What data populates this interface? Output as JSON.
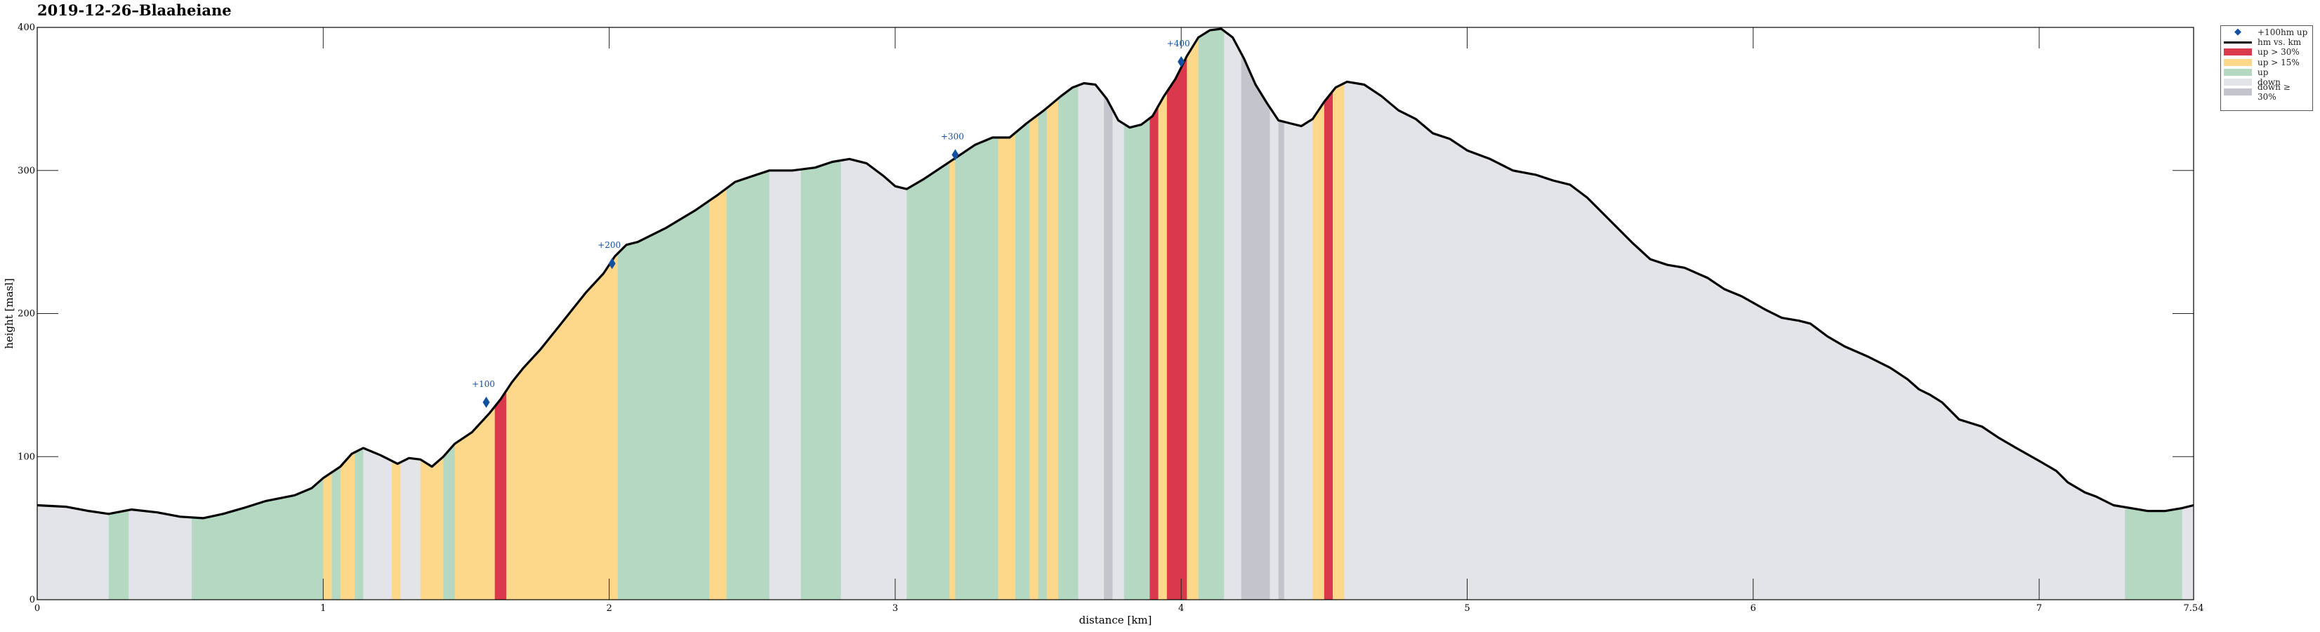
{
  "chart_data": {
    "type": "area",
    "title": "2019-12-26–Blaaheiane",
    "xlabel": "distance [km]",
    "ylabel": "height [masl]",
    "xlim": [
      0,
      7.54
    ],
    "ylim": [
      0,
      400
    ],
    "x_ticks": [
      0,
      1,
      2,
      3,
      4,
      5,
      6,
      7,
      7.54
    ],
    "x_tick_labels": [
      "0",
      "1",
      "2",
      "3",
      "4",
      "5",
      "6",
      "7",
      "7.54"
    ],
    "y_ticks": [
      0,
      100,
      200,
      300,
      400
    ],
    "y_tick_labels": [
      "0",
      "100",
      "200",
      "300",
      "400"
    ],
    "grid": true,
    "legend_position": "outside-right-top",
    "colors": {
      "up_gt_30": "#d9394a",
      "up_gt_15": "#fdd88a",
      "up": "#b5d8c3",
      "down": "#e3e4e8",
      "down_ge_30": "#c3c4cc",
      "line": "#000000",
      "marker": "#1450a0"
    },
    "legend": [
      {
        "key": "marker",
        "label": "+100hm up"
      },
      {
        "key": "line",
        "label": "hm vs. km"
      },
      {
        "key": "up_gt_30",
        "label": "up > 30%"
      },
      {
        "key": "up_gt_15",
        "label": "up > 15%"
      },
      {
        "key": "up",
        "label": "up"
      },
      {
        "key": "down",
        "label": "down"
      },
      {
        "key": "down_ge_30",
        "label": "down ≥ 30%"
      }
    ],
    "profile": [
      [
        0,
        66
      ],
      [
        0.1,
        65
      ],
      [
        0.18,
        62
      ],
      [
        0.25,
        60
      ],
      [
        0.33,
        63
      ],
      [
        0.42,
        61
      ],
      [
        0.5,
        58
      ],
      [
        0.58,
        57
      ],
      [
        0.65,
        60
      ],
      [
        0.72,
        64
      ],
      [
        0.8,
        69
      ],
      [
        0.9,
        73
      ],
      [
        0.96,
        78
      ],
      [
        1.0,
        85
      ],
      [
        1.06,
        93
      ],
      [
        1.1,
        102
      ],
      [
        1.14,
        106
      ],
      [
        1.2,
        101
      ],
      [
        1.26,
        95
      ],
      [
        1.3,
        99
      ],
      [
        1.34,
        98
      ],
      [
        1.38,
        93
      ],
      [
        1.42,
        100
      ],
      [
        1.46,
        109
      ],
      [
        1.52,
        117
      ],
      [
        1.58,
        130
      ],
      [
        1.62,
        140
      ],
      [
        1.66,
        152
      ],
      [
        1.7,
        162
      ],
      [
        1.76,
        175
      ],
      [
        1.82,
        190
      ],
      [
        1.88,
        205
      ],
      [
        1.92,
        215
      ],
      [
        1.98,
        228
      ],
      [
        2.02,
        240
      ],
      [
        2.06,
        248
      ],
      [
        2.1,
        250
      ],
      [
        2.2,
        260
      ],
      [
        2.3,
        272
      ],
      [
        2.38,
        283
      ],
      [
        2.44,
        292
      ],
      [
        2.5,
        296
      ],
      [
        2.56,
        300
      ],
      [
        2.64,
        300
      ],
      [
        2.72,
        302
      ],
      [
        2.78,
        306
      ],
      [
        2.84,
        308
      ],
      [
        2.9,
        305
      ],
      [
        2.96,
        296
      ],
      [
        3.0,
        289
      ],
      [
        3.04,
        287
      ],
      [
        3.1,
        294
      ],
      [
        3.16,
        302
      ],
      [
        3.22,
        310
      ],
      [
        3.28,
        318
      ],
      [
        3.34,
        323
      ],
      [
        3.4,
        323
      ],
      [
        3.46,
        333
      ],
      [
        3.52,
        342
      ],
      [
        3.58,
        352
      ],
      [
        3.62,
        358
      ],
      [
        3.66,
        361
      ],
      [
        3.7,
        360
      ],
      [
        3.74,
        350
      ],
      [
        3.78,
        335
      ],
      [
        3.82,
        330
      ],
      [
        3.86,
        332
      ],
      [
        3.9,
        338
      ],
      [
        3.94,
        352
      ],
      [
        3.98,
        364
      ],
      [
        4.02,
        380
      ],
      [
        4.06,
        393
      ],
      [
        4.1,
        398
      ],
      [
        4.14,
        399
      ],
      [
        4.18,
        393
      ],
      [
        4.22,
        378
      ],
      [
        4.26,
        360
      ],
      [
        4.3,
        347
      ],
      [
        4.34,
        335
      ],
      [
        4.38,
        333
      ],
      [
        4.42,
        331
      ],
      [
        4.46,
        336
      ],
      [
        4.5,
        348
      ],
      [
        4.54,
        358
      ],
      [
        4.58,
        362
      ],
      [
        4.64,
        360
      ],
      [
        4.7,
        352
      ],
      [
        4.76,
        342
      ],
      [
        4.82,
        336
      ],
      [
        4.88,
        326
      ],
      [
        4.94,
        322
      ],
      [
        5.0,
        314
      ],
      [
        5.08,
        308
      ],
      [
        5.16,
        300
      ],
      [
        5.24,
        297
      ],
      [
        5.3,
        293
      ],
      [
        5.36,
        290
      ],
      [
        5.42,
        281
      ],
      [
        5.5,
        265
      ],
      [
        5.58,
        249
      ],
      [
        5.64,
        238
      ],
      [
        5.7,
        234
      ],
      [
        5.76,
        232
      ],
      [
        5.84,
        225
      ],
      [
        5.9,
        217
      ],
      [
        5.96,
        212
      ],
      [
        6.04,
        203
      ],
      [
        6.1,
        197
      ],
      [
        6.16,
        195
      ],
      [
        6.2,
        193
      ],
      [
        6.26,
        184
      ],
      [
        6.32,
        177
      ],
      [
        6.4,
        170
      ],
      [
        6.48,
        162
      ],
      [
        6.54,
        154
      ],
      [
        6.58,
        147
      ],
      [
        6.62,
        143
      ],
      [
        6.66,
        138
      ],
      [
        6.72,
        126
      ],
      [
        6.8,
        121
      ],
      [
        6.86,
        113
      ],
      [
        6.92,
        106
      ],
      [
        7.0,
        97
      ],
      [
        7.06,
        90
      ],
      [
        7.1,
        82
      ],
      [
        7.16,
        75
      ],
      [
        7.2,
        72
      ],
      [
        7.26,
        66
      ],
      [
        7.32,
        64
      ],
      [
        7.38,
        62
      ],
      [
        7.44,
        62
      ],
      [
        7.5,
        64
      ],
      [
        7.54,
        66
      ]
    ],
    "segments": [
      [
        0.0,
        0.25,
        "down"
      ],
      [
        0.25,
        0.32,
        "up"
      ],
      [
        0.32,
        0.54,
        "down"
      ],
      [
        0.54,
        1.0,
        "up"
      ],
      [
        1.0,
        1.03,
        "up_gt_15"
      ],
      [
        1.03,
        1.06,
        "up"
      ],
      [
        1.06,
        1.11,
        "up_gt_15"
      ],
      [
        1.11,
        1.14,
        "up"
      ],
      [
        1.14,
        1.24,
        "down"
      ],
      [
        1.24,
        1.27,
        "up_gt_15"
      ],
      [
        1.27,
        1.34,
        "down"
      ],
      [
        1.34,
        1.42,
        "up_gt_15"
      ],
      [
        1.42,
        1.46,
        "up"
      ],
      [
        1.46,
        1.6,
        "up_gt_15"
      ],
      [
        1.6,
        1.64,
        "up_gt_30"
      ],
      [
        1.64,
        2.03,
        "up_gt_15"
      ],
      [
        2.03,
        2.35,
        "up"
      ],
      [
        2.35,
        2.41,
        "up_gt_15"
      ],
      [
        2.41,
        2.56,
        "up"
      ],
      [
        2.56,
        2.67,
        "down"
      ],
      [
        2.67,
        2.81,
        "up"
      ],
      [
        2.81,
        3.04,
        "down"
      ],
      [
        3.04,
        3.19,
        "up"
      ],
      [
        3.19,
        3.21,
        "up_gt_15"
      ],
      [
        3.21,
        3.36,
        "up"
      ],
      [
        3.36,
        3.42,
        "up_gt_15"
      ],
      [
        3.42,
        3.47,
        "up"
      ],
      [
        3.47,
        3.5,
        "up_gt_15"
      ],
      [
        3.5,
        3.53,
        "up"
      ],
      [
        3.53,
        3.57,
        "up_gt_15"
      ],
      [
        3.57,
        3.64,
        "up"
      ],
      [
        3.64,
        3.73,
        "down"
      ],
      [
        3.73,
        3.76,
        "down_ge_30"
      ],
      [
        3.76,
        3.8,
        "down"
      ],
      [
        3.8,
        3.89,
        "up"
      ],
      [
        3.89,
        3.92,
        "up_gt_30"
      ],
      [
        3.92,
        3.95,
        "up_gt_15"
      ],
      [
        3.95,
        4.02,
        "up_gt_30"
      ],
      [
        4.02,
        4.06,
        "up_gt_15"
      ],
      [
        4.06,
        4.15,
        "up"
      ],
      [
        4.15,
        4.21,
        "down"
      ],
      [
        4.21,
        4.31,
        "down_ge_30"
      ],
      [
        4.31,
        4.34,
        "down"
      ],
      [
        4.34,
        4.36,
        "down_ge_30"
      ],
      [
        4.36,
        4.46,
        "down"
      ],
      [
        4.46,
        4.5,
        "up_gt_15"
      ],
      [
        4.5,
        4.53,
        "up_gt_30"
      ],
      [
        4.53,
        4.57,
        "up_gt_15"
      ],
      [
        4.57,
        7.3,
        "down"
      ],
      [
        7.3,
        7.5,
        "up"
      ],
      [
        7.5,
        7.54,
        "down"
      ]
    ],
    "markers": [
      {
        "x": 1.57,
        "y": 138,
        "label": "+100"
      },
      {
        "x": 2.01,
        "y": 235,
        "label": "+200"
      },
      {
        "x": 3.21,
        "y": 311,
        "label": "+300"
      },
      {
        "x": 4.0,
        "y": 376,
        "label": "+400"
      }
    ]
  }
}
